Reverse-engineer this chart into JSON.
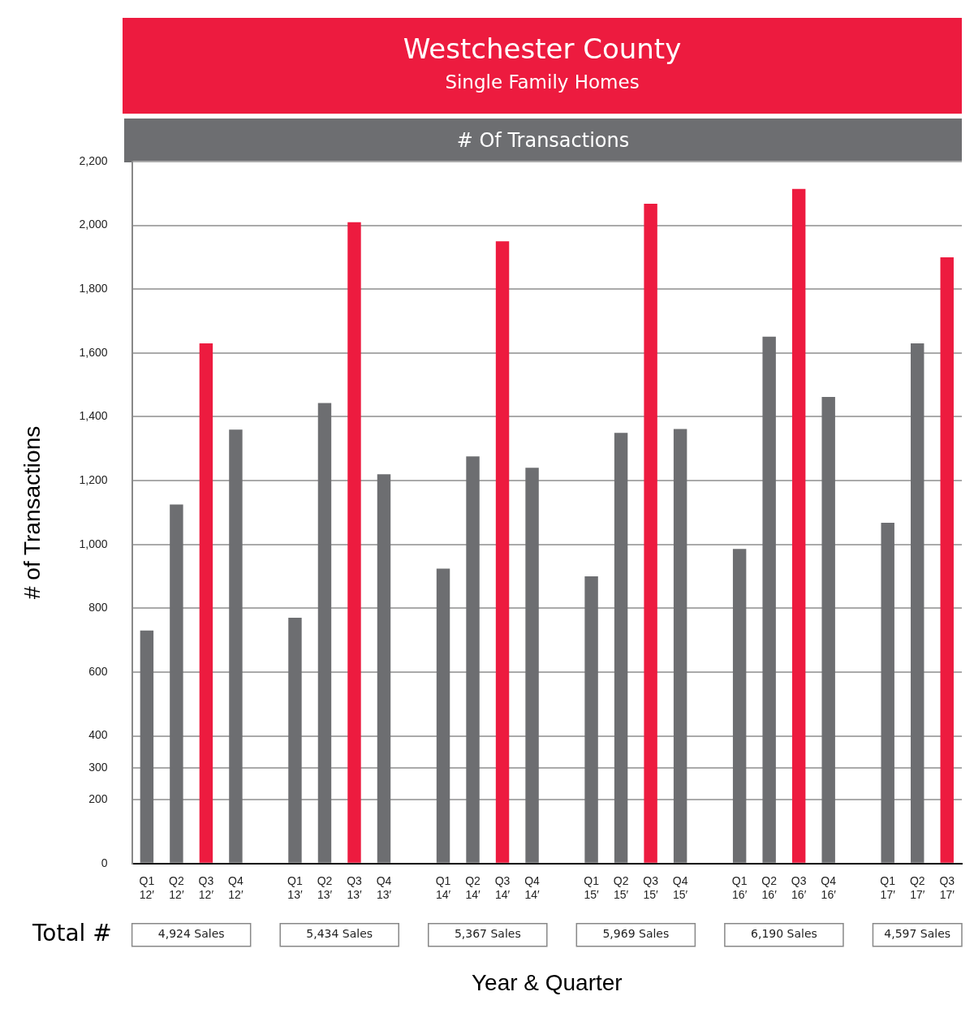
{
  "chart_data": {
    "type": "bar",
    "title": "Westchester County",
    "subtitle": "Single Family Homes",
    "xlabel": "Year & Quarter",
    "ylabel": "# of Transactions",
    "categories": [
      "Q1 12′",
      "Q2 12′",
      "Q3 12′",
      "Q4 12′",
      null,
      "Q1 13′",
      "Q2 13′",
      "Q3 13′",
      "Q4 13′",
      null,
      "Q1 14′",
      "Q2 14′",
      "Q3 14′",
      "Q4 14′",
      null,
      "Q1 15′",
      "Q2 15′",
      "Q3 15′",
      "Q4 15′",
      null,
      "Q1 16′",
      "Q2 16′",
      "Q3 16′",
      "Q4 16′",
      null,
      "Q1 17′",
      "Q2 17′",
      "Q3 17′"
    ],
    "values": [
      730,
      1125,
      1630,
      1360,
      null,
      770,
      1443,
      2010,
      1220,
      null,
      924,
      1276,
      1950,
      1240,
      null,
      900,
      1350,
      2068,
      1362,
      null,
      986,
      1651,
      2114,
      1462,
      null,
      1068,
      1630,
      1900
    ],
    "colors": [
      "#6d6e71",
      "#6d6e71",
      "#ed1b3f",
      "#6d6e71",
      null,
      "#6d6e71",
      "#6d6e71",
      "#ed1b3f",
      "#6d6e71",
      null,
      "#6d6e71",
      "#6d6e71",
      "#ed1b3f",
      "#6d6e71",
      null,
      "#6d6e71",
      "#6d6e71",
      "#ed1b3f",
      "#6d6e71",
      null,
      "#6d6e71",
      "#6d6e71",
      "#ed1b3f",
      "#6d6e71",
      null,
      "#6d6e71",
      "#6d6e71",
      "#ed1b3f"
    ],
    "ylim": [
      0,
      2200
    ],
    "yticks": [
      0,
      200,
      300,
      400,
      600,
      800,
      {
        "value": 1000,
        "label": "1,000"
      },
      {
        "value": 1200,
        "label": "1,200"
      },
      {
        "value": 1400,
        "label": "1,400"
      },
      {
        "value": 1600,
        "label": "1,600"
      },
      {
        "value": 1800,
        "label": "1,800"
      },
      {
        "value": 2000,
        "label": "2,000"
      },
      {
        "value": 2200,
        "label": "2,200"
      }
    ],
    "grid": "y",
    "legend": false,
    "annotations": [
      "# Of Transactions",
      "Total #",
      "4,924 Sales",
      "5,434 Sales",
      "5,367 Sales",
      "5,969 Sales",
      "6,190 Sales",
      "4,597 Sales"
    ]
  }
}
